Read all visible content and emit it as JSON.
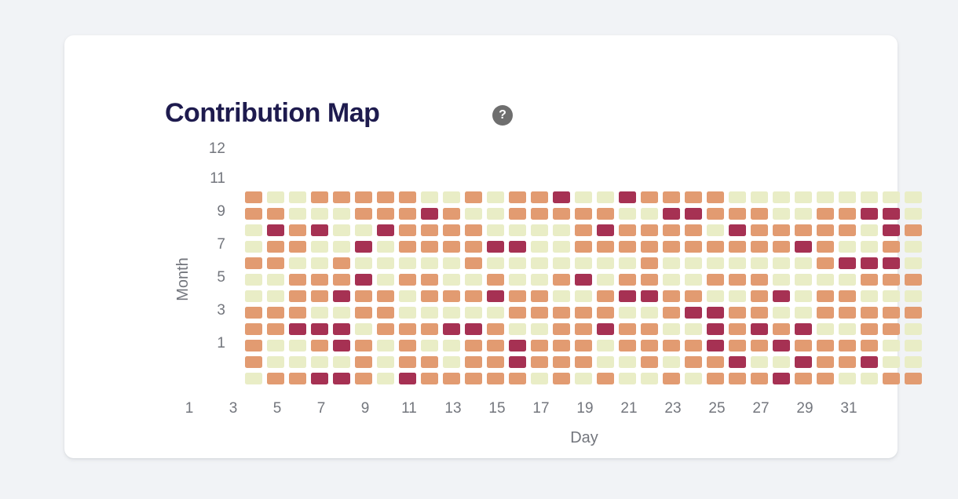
{
  "card": {
    "title": "Contribution Map",
    "help_icon": "?"
  },
  "chart_data": {
    "type": "heatmap",
    "title": "Contribution Map",
    "xlabel": "Day",
    "ylabel": "Month",
    "x_range": [
      1,
      31
    ],
    "y_range": [
      1,
      12
    ],
    "grid": false,
    "legend_position": "none",
    "x_tick_labels": [
      "1",
      "3",
      "5",
      "7",
      "9",
      "11",
      "13",
      "15",
      "17",
      "19",
      "21",
      "23",
      "25",
      "27",
      "29",
      "31"
    ],
    "y_tick_labels": [
      "12",
      "11",
      "9",
      "7",
      "5",
      "3",
      "1"
    ],
    "value_levels": {
      "0": "low",
      "1": "medium",
      "2": "high"
    },
    "palette": {
      "0": "#e9edc6",
      "1": "#e29b71",
      "2": "#a63153"
    },
    "rows_top_to_bottom": [
      {
        "month": 12,
        "values": [
          1,
          0,
          0,
          1,
          1,
          1,
          1,
          1,
          0,
          0,
          1,
          0,
          1,
          1,
          2,
          0,
          0,
          2,
          1,
          1,
          1,
          1,
          0,
          0,
          0,
          0,
          0,
          0,
          0,
          0,
          0
        ]
      },
      {
        "month": 11,
        "values": [
          1,
          1,
          0,
          0,
          0,
          1,
          1,
          1,
          2,
          1,
          0,
          0,
          1,
          1,
          1,
          1,
          1,
          0,
          0,
          2,
          2,
          1,
          1,
          1,
          0,
          0,
          1,
          1,
          2,
          2,
          0
        ]
      },
      {
        "month": 10,
        "values": [
          0,
          2,
          1,
          2,
          0,
          0,
          2,
          1,
          1,
          1,
          1,
          0,
          0,
          0,
          0,
          1,
          2,
          1,
          1,
          1,
          1,
          0,
          2,
          1,
          1,
          1,
          1,
          1,
          0,
          2,
          1
        ]
      },
      {
        "month": 9,
        "values": [
          0,
          1,
          1,
          0,
          0,
          2,
          0,
          1,
          1,
          1,
          1,
          2,
          2,
          0,
          0,
          1,
          1,
          1,
          1,
          1,
          1,
          1,
          1,
          1,
          1,
          2,
          1,
          0,
          0,
          1,
          0
        ]
      },
      {
        "month": 8,
        "values": [
          1,
          1,
          0,
          0,
          1,
          0,
          0,
          0,
          0,
          0,
          1,
          0,
          0,
          0,
          0,
          0,
          0,
          0,
          1,
          0,
          0,
          0,
          0,
          0,
          0,
          0,
          1,
          2,
          2,
          2,
          0
        ]
      },
      {
        "month": 7,
        "values": [
          0,
          0,
          1,
          1,
          1,
          2,
          0,
          1,
          1,
          0,
          0,
          1,
          0,
          0,
          1,
          2,
          0,
          1,
          1,
          0,
          0,
          1,
          1,
          1,
          0,
          0,
          0,
          0,
          1,
          1,
          1
        ]
      },
      {
        "month": 6,
        "values": [
          0,
          0,
          1,
          1,
          2,
          1,
          1,
          0,
          1,
          1,
          1,
          2,
          1,
          1,
          0,
          0,
          1,
          2,
          2,
          1,
          1,
          0,
          0,
          1,
          2,
          0,
          1,
          1,
          0,
          0,
          0
        ]
      },
      {
        "month": 5,
        "values": [
          1,
          1,
          1,
          0,
          0,
          1,
          1,
          0,
          0,
          0,
          0,
          0,
          1,
          1,
          1,
          1,
          1,
          0,
          0,
          1,
          2,
          2,
          1,
          1,
          0,
          0,
          1,
          1,
          1,
          1,
          1
        ]
      },
      {
        "month": 4,
        "values": [
          1,
          1,
          2,
          2,
          2,
          0,
          1,
          1,
          1,
          2,
          2,
          1,
          0,
          0,
          1,
          1,
          2,
          1,
          1,
          0,
          0,
          2,
          1,
          2,
          1,
          2,
          0,
          0,
          1,
          1,
          0
        ]
      },
      {
        "month": 3,
        "values": [
          1,
          0,
          0,
          1,
          2,
          1,
          0,
          1,
          0,
          0,
          1,
          1,
          2,
          1,
          1,
          1,
          0,
          1,
          1,
          1,
          1,
          2,
          1,
          1,
          2,
          1,
          1,
          1,
          1,
          0,
          0
        ]
      },
      {
        "month": 2,
        "values": [
          1,
          0,
          0,
          0,
          0,
          1,
          0,
          1,
          1,
          0,
          1,
          1,
          2,
          1,
          1,
          1,
          0,
          0,
          1,
          0,
          1,
          1,
          2,
          0,
          0,
          2,
          1,
          1,
          2,
          0,
          0
        ]
      },
      {
        "month": 1,
        "values": [
          0,
          1,
          1,
          2,
          2,
          1,
          0,
          2,
          1,
          1,
          1,
          1,
          1,
          0,
          1,
          0,
          1,
          0,
          0,
          1,
          0,
          1,
          1,
          1,
          2,
          1,
          1,
          0,
          0,
          1,
          1
        ]
      }
    ]
  }
}
